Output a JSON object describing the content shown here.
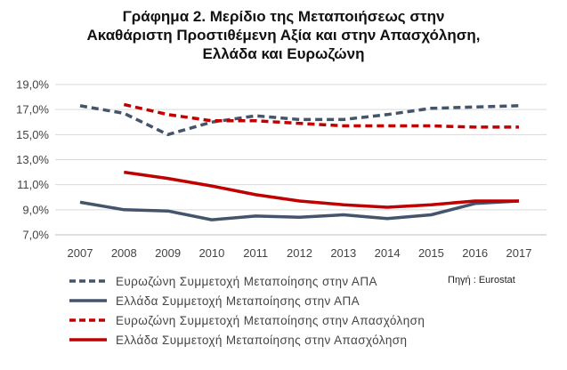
{
  "chart_data": {
    "type": "line",
    "title_lines": [
      "Γράφημα 2. Μερίδιο της Μεταποιήσεως στην",
      "Ακαθάριστη Προστιθέμενη Αξία και στην Απασχόληση,",
      "Ελλάδα και Ευρωζώνη"
    ],
    "xlabel": "",
    "ylabel": "",
    "x": [
      2007,
      2008,
      2009,
      2010,
      2011,
      2012,
      2013,
      2014,
      2015,
      2016,
      2017
    ],
    "x_labels": [
      "2007",
      "2008",
      "2009",
      "2010",
      "2011",
      "2012",
      "2013",
      "2014",
      "2015",
      "2016",
      "2017"
    ],
    "y_ticks": [
      7.0,
      9.0,
      11.0,
      13.0,
      15.0,
      17.0,
      19.0
    ],
    "y_tick_labels": [
      "7,0%",
      "9,0%",
      "11,0%",
      "13,0%",
      "15,0%",
      "17,0%",
      "19,0%"
    ],
    "ylim": [
      7.0,
      19.0
    ],
    "grid": "horizontal",
    "legend_position": "bottom",
    "series": [
      {
        "name": "Ευρωζώνη Συμμετοχή Μεταποίησης στην ΑΠΑ",
        "color": "#44546a",
        "dashed": true,
        "values": [
          17.3,
          16.7,
          15.0,
          16.0,
          16.5,
          16.2,
          16.2,
          16.6,
          17.1,
          17.2,
          17.3
        ]
      },
      {
        "name": "Ελλάδα Συμμετοχή Μεταποίησης στην ΑΠΑ",
        "color": "#44546a",
        "dashed": false,
        "values": [
          9.6,
          9.0,
          8.9,
          8.2,
          8.5,
          8.4,
          8.6,
          8.3,
          8.6,
          9.5,
          9.7
        ]
      },
      {
        "name": "Ευρωζώνη Συμμετοχή Μεταποίησης στην Απασχόληση",
        "color": "#c00000",
        "dashed": true,
        "values": [
          null,
          17.4,
          16.6,
          16.1,
          16.1,
          15.9,
          15.7,
          15.7,
          15.7,
          15.6,
          15.6
        ]
      },
      {
        "name": "Ελλάδα Συμμετοχή Μεταποίησης στην Απασχόληση",
        "color": "#c00000",
        "dashed": false,
        "values": [
          null,
          12.0,
          11.5,
          10.9,
          10.2,
          9.7,
          9.4,
          9.2,
          9.4,
          9.7,
          9.7
        ]
      }
    ],
    "source_note": "Πηγή : Eurostat"
  }
}
